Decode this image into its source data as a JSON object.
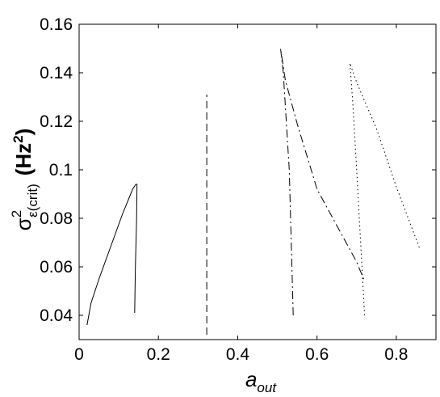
{
  "chart_data": {
    "type": "line",
    "xlabel": {
      "base": "a",
      "sub": "out"
    },
    "ylabel": {
      "sigma": "σ",
      "sup": "2",
      "sub": "ε(crit)",
      "unit": "(Hz",
      "unit_sup": "2",
      "unit_close": ")"
    },
    "xlim": [
      0,
      0.9
    ],
    "ylim": [
      0.03,
      0.16
    ],
    "xticks": [
      0,
      0.2,
      0.4,
      0.6,
      0.8
    ],
    "xtick_labels": [
      "0",
      "0.2",
      "0.4",
      "0.6",
      "0.8"
    ],
    "yticks": [
      0.04,
      0.06,
      0.08,
      0.1,
      0.12,
      0.14,
      0.16
    ],
    "ytick_labels": [
      "0.04",
      "0.06",
      "0.08",
      "0.1",
      "0.12",
      "0.14",
      "0.16"
    ],
    "grid": false,
    "legend": "none",
    "color": "#000000",
    "series": [
      {
        "style": "solid",
        "x": [
          0.02,
          0.03,
          0.05,
          0.07,
          0.09,
          0.11,
          0.125,
          0.135,
          0.143,
          0.146,
          0.145,
          0.142,
          0.14
        ],
        "y": [
          0.036,
          0.045,
          0.055,
          0.064,
          0.073,
          0.082,
          0.088,
          0.092,
          0.094,
          0.094,
          0.08,
          0.06,
          0.041
        ]
      },
      {
        "style": "dashed",
        "x": [
          0.322,
          0.322
        ],
        "y": [
          0.032,
          0.131
        ]
      },
      {
        "style": "dashdot",
        "x": [
          0.54,
          0.53,
          0.515,
          0.508,
          0.52,
          0.55,
          0.6,
          0.65,
          0.7,
          0.72
        ],
        "y": [
          0.04,
          0.1,
          0.14,
          0.15,
          0.137,
          0.119,
          0.092,
          0.077,
          0.062,
          0.054
        ]
      },
      {
        "style": "dotted",
        "x": [
          0.72,
          0.71,
          0.7,
          0.69,
          0.683,
          0.7,
          0.75,
          0.8,
          0.86
        ],
        "y": [
          0.04,
          0.07,
          0.1,
          0.128,
          0.144,
          0.136,
          0.117,
          0.093,
          0.067
        ]
      }
    ]
  }
}
